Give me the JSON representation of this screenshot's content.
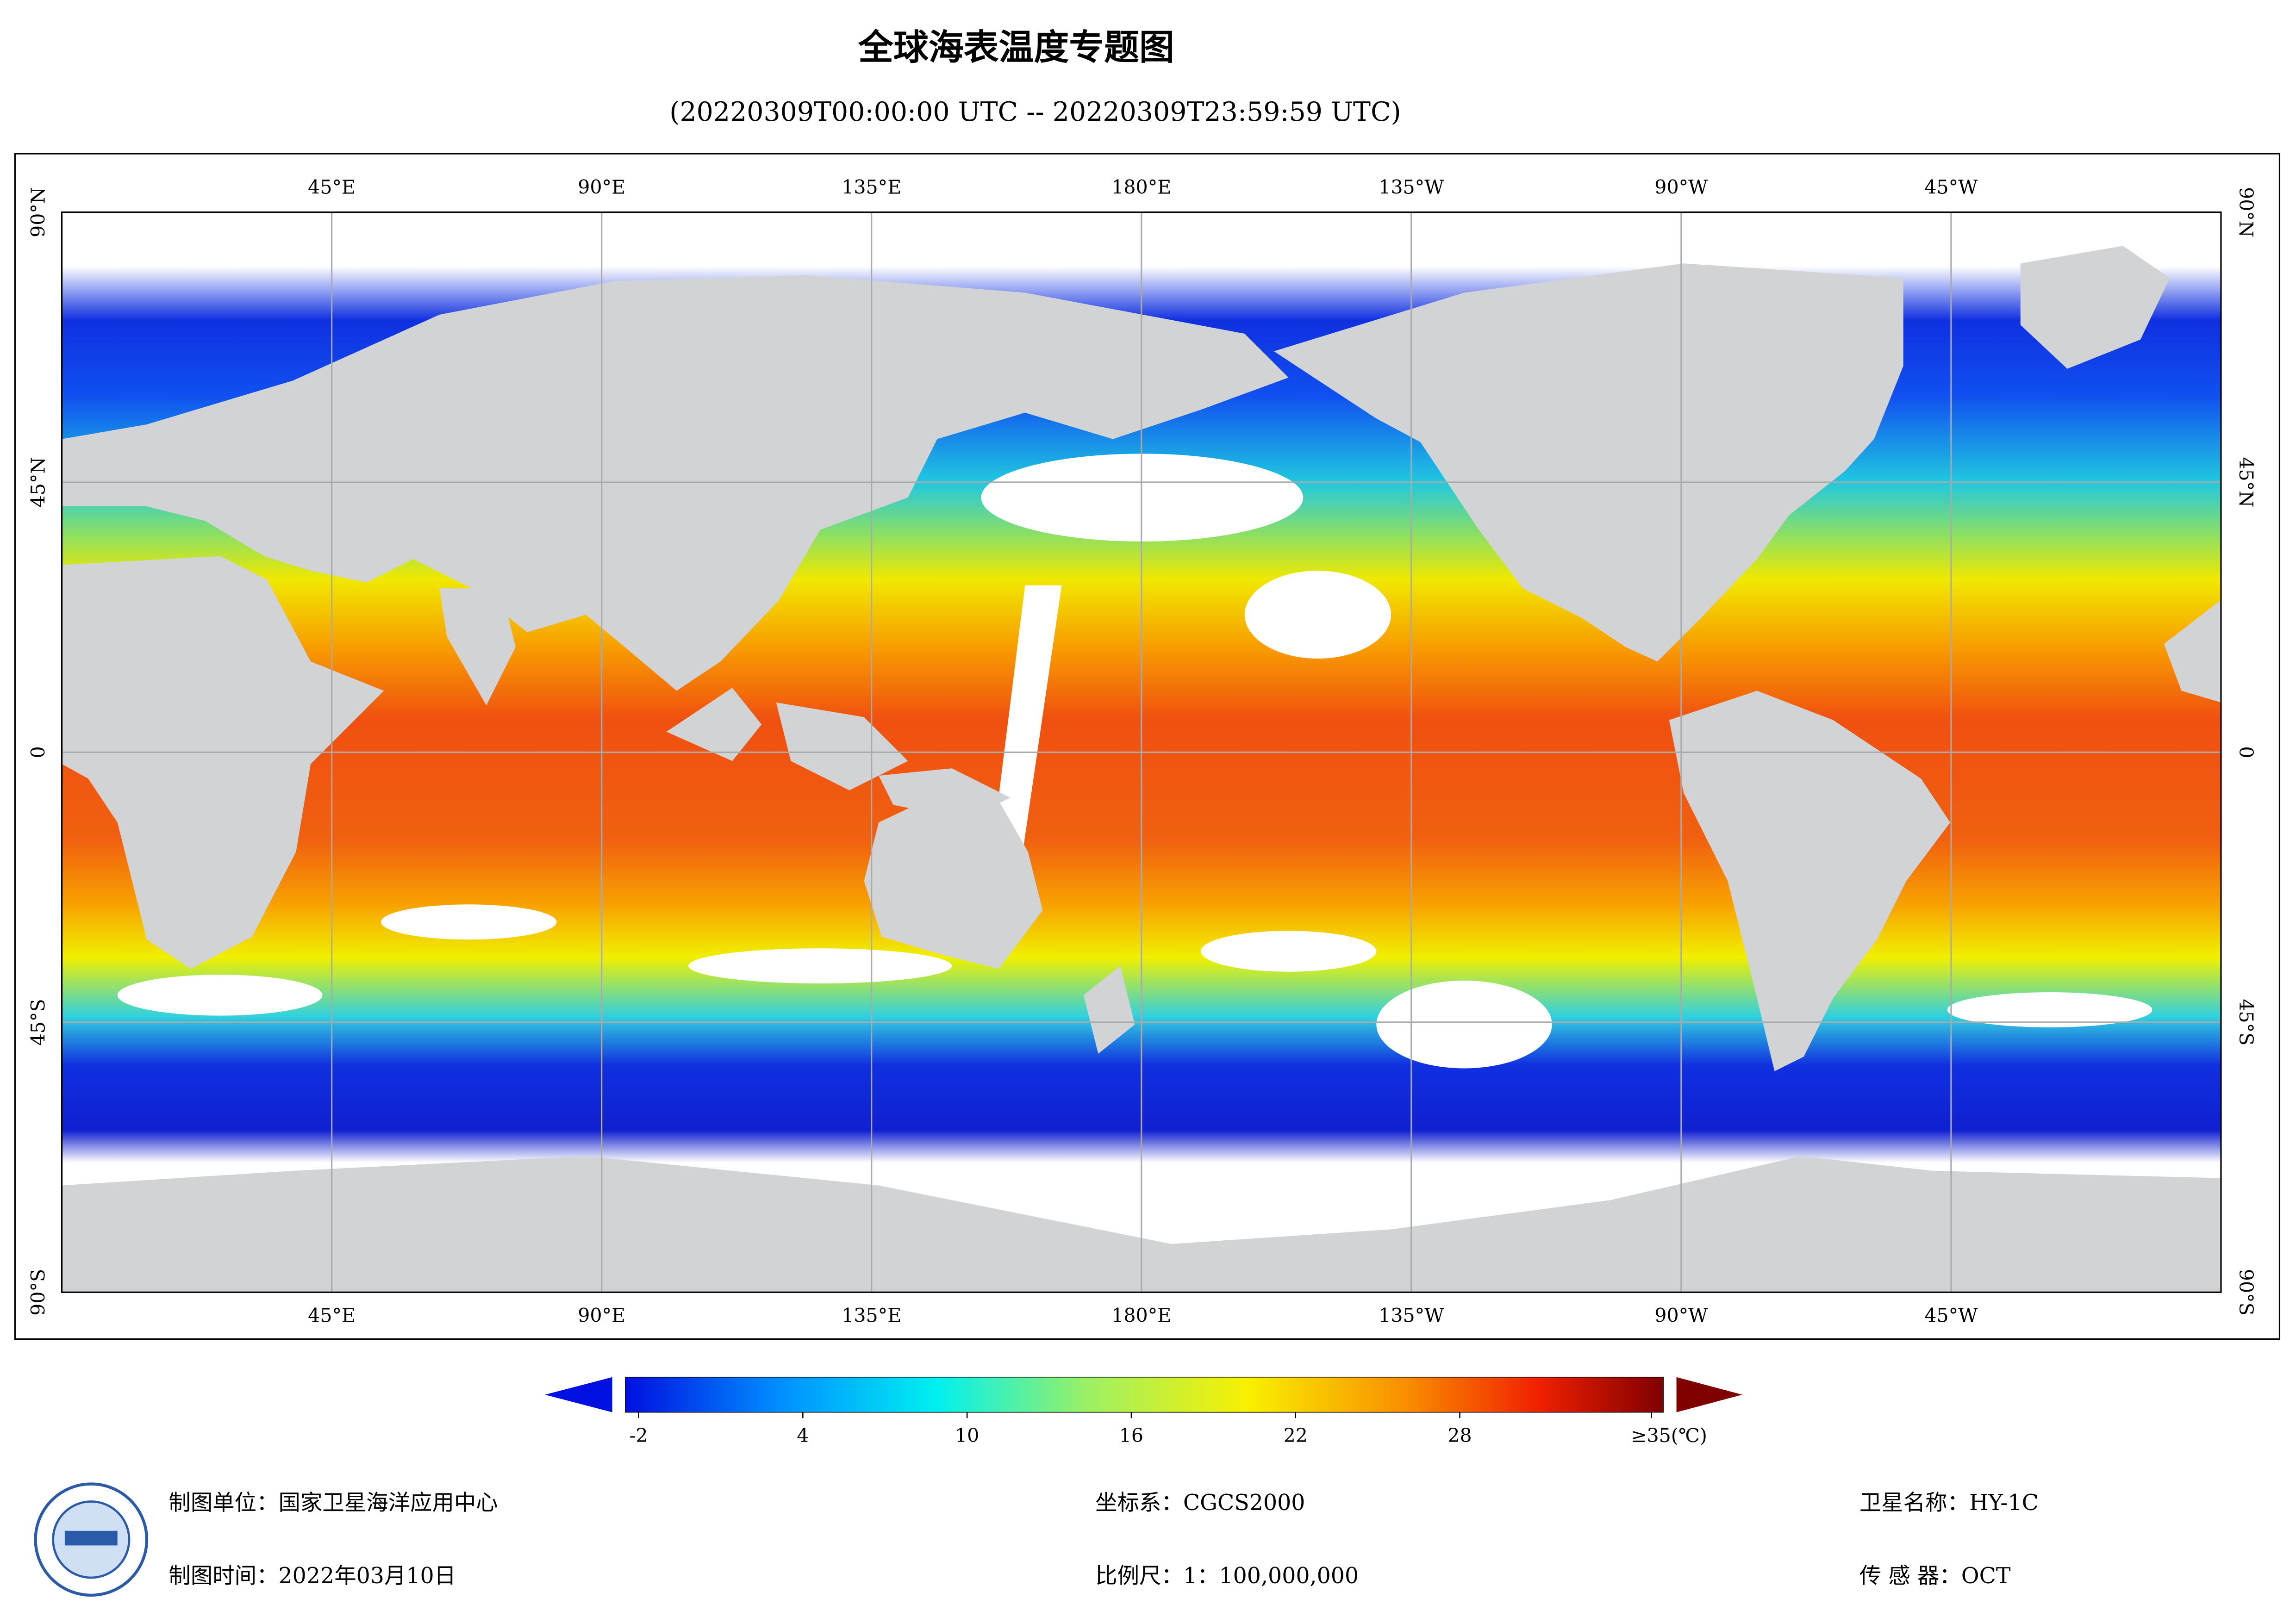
{
  "header": {
    "title": "全球海表温度专题图",
    "subtitle": "(20220309T00:00:00 UTC -- 20220309T23:59:59 UTC)"
  },
  "map": {
    "lon_ticks": [
      {
        "value": 45,
        "label": "45°E"
      },
      {
        "value": 90,
        "label": "90°E"
      },
      {
        "value": 135,
        "label": "135°E"
      },
      {
        "value": 180,
        "label": "180°E"
      },
      {
        "value": -135,
        "label": "135°W"
      },
      {
        "value": -90,
        "label": "90°W"
      },
      {
        "value": -45,
        "label": "45°W"
      }
    ],
    "lat_ticks": [
      {
        "value": 90,
        "label": "90°N"
      },
      {
        "value": 45,
        "label": "45°N"
      },
      0,
      {
        "value": -45,
        "label": "45°S"
      },
      {
        "value": -90,
        "label": "90°S"
      }
    ]
  },
  "colorbar": {
    "ticks": [
      -2,
      4,
      10,
      16,
      22,
      28,
      {
        "value": 35,
        "label": "≥35(℃)"
      }
    ]
  },
  "footer": {
    "unit": "制图单位：国家卫星海洋应用中心",
    "date": "制图时间：2022年03月10日",
    "crs": "坐标系：CGCS2000",
    "scale": "比例尺：1：100,000,000",
    "satellite": "卫星名称：HY-1C",
    "sensor": "传 感 器：OCT"
  }
}
